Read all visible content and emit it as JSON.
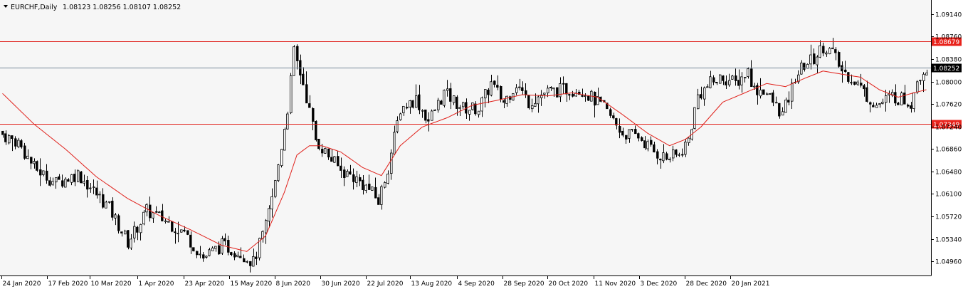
{
  "header": {
    "symbol": "EURCHF,Daily",
    "ohlc": "1.08123 1.08256 1.08107 1.08252"
  },
  "colors": {
    "background": "#F6F6F6",
    "bull_candle": "#000000",
    "bear_candle": "#000000",
    "bull_fill": "#FFFFFF",
    "moving_average": "#E0201A",
    "level_line": "#E0201A",
    "current_price_line": "#778899",
    "level_label_bg": "#E8231C",
    "current_label_bg": "#000000"
  },
  "chart_data": {
    "type": "candlestick",
    "instrument": "EURCHF",
    "timeframe": "Daily",
    "ylim": [
      1.0496,
      1.09296
    ],
    "y_ticks": [
      "1.09140",
      "1.08760",
      "1.08380",
      "1.08000",
      "1.07620",
      "1.07240",
      "1.06860",
      "1.06480",
      "1.06100",
      "1.05720",
      "1.05340",
      "1.04960"
    ],
    "x_ticks": [
      "24 Jan 2020",
      "17 Feb 2020",
      "10 Mar 2020",
      "1 Apr 2020",
      "23 Apr 2020",
      "15 May 2020",
      "8 Jun 2020",
      "30 Jun 2020",
      "22 Jul 2020",
      "13 Aug 2020",
      "4 Sep 2020",
      "28 Sep 2020",
      "20 Oct 2020",
      "11 Nov 2020",
      "3 Dec 2020",
      "28 Dec 2020",
      "20 Jan 2021"
    ],
    "horizontal_levels": [
      {
        "value": 1.08679,
        "label": "1.08679"
      },
      {
        "value": 1.07349,
        "label": "1.07349"
      }
    ],
    "current_price": {
      "value": 1.08252,
      "label": "1.08252"
    },
    "close_anchors": [
      [
        0,
        1.0718
      ],
      [
        5,
        1.0705
      ],
      [
        10,
        1.0665
      ],
      [
        17,
        1.064
      ],
      [
        24,
        1.0655
      ],
      [
        34,
        1.06
      ],
      [
        40,
        1.0545
      ],
      [
        46,
        1.0595
      ],
      [
        52,
        1.058
      ],
      [
        58,
        1.056
      ],
      [
        64,
        1.052
      ],
      [
        70,
        1.054
      ],
      [
        76,
        1.0528
      ],
      [
        80,
        1.0512
      ],
      [
        84,
        1.057
      ],
      [
        87,
        1.064
      ],
      [
        91,
        1.076
      ],
      [
        93,
        1.085
      ],
      [
        96,
        1.08
      ],
      [
        100,
        1.071
      ],
      [
        103,
        1.069
      ],
      [
        108,
        1.066
      ],
      [
        112,
        1.065
      ],
      [
        117,
        1.063
      ],
      [
        120,
        1.061
      ],
      [
        123,
        1.0665
      ],
      [
        127,
        1.076
      ],
      [
        132,
        1.0775
      ],
      [
        136,
        1.074
      ],
      [
        141,
        1.0785
      ],
      [
        147,
        1.076
      ],
      [
        152,
        1.076
      ],
      [
        156,
        1.08
      ],
      [
        160,
        1.077
      ],
      [
        164,
        1.08
      ],
      [
        168,
        1.077
      ],
      [
        173,
        1.0785
      ],
      [
        179,
        1.079
      ],
      [
        185,
        1.079
      ],
      [
        192,
        1.076
      ],
      [
        198,
        1.072
      ],
      [
        203,
        1.0715
      ],
      [
        208,
        1.069
      ],
      [
        212,
        1.068
      ],
      [
        216,
        1.0685
      ],
      [
        219,
        1.071
      ],
      [
        222,
        1.078
      ],
      [
        226,
        1.08
      ],
      [
        230,
        1.081
      ],
      [
        234,
        1.08
      ],
      [
        238,
        1.082
      ],
      [
        240,
        1.079
      ],
      [
        243,
        1.079
      ],
      [
        246,
        1.077
      ],
      [
        249,
        1.075
      ],
      [
        251,
        1.0775
      ],
      [
        253,
        1.081
      ],
      [
        256,
        1.083
      ],
      [
        259,
        1.084
      ],
      [
        262,
        1.086
      ],
      [
        265,
        1.085
      ],
      [
        268,
        1.082
      ],
      [
        271,
        1.081
      ],
      [
        273,
        1.08
      ],
      [
        276,
        1.078
      ],
      [
        279,
        1.0765
      ],
      [
        281,
        1.077
      ],
      [
        284,
        1.078
      ],
      [
        287,
        1.0775
      ],
      [
        290,
        1.077
      ],
      [
        292,
        1.081
      ],
      [
        295,
        1.0825
      ]
    ],
    "moving_average_anchors": [
      [
        0,
        1.0784
      ],
      [
        10,
        1.0735
      ],
      [
        20,
        1.0695
      ],
      [
        30,
        1.065
      ],
      [
        40,
        1.0615
      ],
      [
        50,
        1.0588
      ],
      [
        60,
        1.0565
      ],
      [
        70,
        1.054
      ],
      [
        78,
        1.053
      ],
      [
        84,
        1.0555
      ],
      [
        90,
        1.0625
      ],
      [
        94,
        1.0685
      ],
      [
        98,
        1.07
      ],
      [
        102,
        1.07
      ],
      [
        108,
        1.069
      ],
      [
        115,
        1.0665
      ],
      [
        121,
        1.0652
      ],
      [
        127,
        1.07
      ],
      [
        134,
        1.073
      ],
      [
        142,
        1.0745
      ],
      [
        150,
        1.0765
      ],
      [
        158,
        1.0773
      ],
      [
        166,
        1.0782
      ],
      [
        174,
        1.078
      ],
      [
        182,
        1.0785
      ],
      [
        190,
        1.0778
      ],
      [
        198,
        1.075
      ],
      [
        206,
        1.072
      ],
      [
        213,
        1.07
      ],
      [
        218,
        1.071
      ],
      [
        223,
        1.073
      ],
      [
        230,
        1.077
      ],
      [
        238,
        1.0787
      ],
      [
        244,
        1.08
      ],
      [
        250,
        1.0795
      ],
      [
        256,
        1.0808
      ],
      [
        262,
        1.082
      ],
      [
        268,
        1.0815
      ],
      [
        274,
        1.081
      ],
      [
        280,
        1.079
      ],
      [
        286,
        1.0778
      ],
      [
        291,
        1.0785
      ],
      [
        295,
        1.079
      ]
    ],
    "candle_count": 296,
    "seed": 7
  }
}
